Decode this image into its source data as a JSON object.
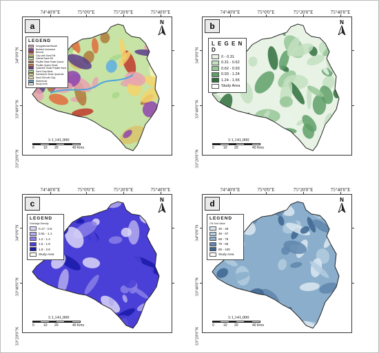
{
  "coords": {
    "top": [
      "74°40'0\"E",
      "75°0'0\"E",
      "75°20'0\"E",
      "75°40'0\"E"
    ],
    "left": [
      "34°0'0\"N",
      "33°40'0\"N",
      "33°20'0\"N"
    ]
  },
  "north_label": "N",
  "panels": [
    {
      "label": "a",
      "legend_title": "LEGEND",
      "legend_items": [
        {
          "text": "Amygdaloidal Basalt",
          "color": "#e8a3b0"
        },
        {
          "text": "Bedded Limestone",
          "color": "#8e44ad"
        },
        {
          "text": "Breccia",
          "color": "#c0392b"
        },
        {
          "text": "Clay with Sand Silt",
          "color": "#d9c36a"
        },
        {
          "text": "Glacial Sand Silt",
          "color": "#c7e3a6"
        },
        {
          "text": "Phyllite Slate Shale Quartz",
          "color": "#b07a3a"
        },
        {
          "text": "Phyllite Quartz Shale",
          "color": "#e06c3c"
        },
        {
          "text": "Quartzite Shale Phyllite Sand",
          "color": "#5a3d8a"
        },
        {
          "text": "Sand Clay Beds",
          "color": "#a9d88c"
        },
        {
          "text": "Sandstone Shale Quartzite",
          "color": "#f3d36b"
        },
        {
          "text": "Sand Silt with Clay",
          "color": "#f7f3b8"
        },
        {
          "text": "Waterbody",
          "color": "#5dade2"
        },
        {
          "text": "Study Area",
          "color": "#ffffff"
        }
      ],
      "scale_ratio": "1:1,141,000",
      "scale_nums": [
        "0",
        "10",
        "20",
        "40 Kms"
      ]
    },
    {
      "label": "b",
      "legend_title": "L E G E N D",
      "legend_items": [
        {
          "text": "0 - 0.31",
          "color": "#e8f3e6"
        },
        {
          "text": "0.31 - 0.62",
          "color": "#c3dfc0"
        },
        {
          "text": "0.62 - 0.93",
          "color": "#96c597"
        },
        {
          "text": "0.93 - 1.24",
          "color": "#5f9f68"
        },
        {
          "text": "1.24 - 1.55",
          "color": "#2f6e3c"
        },
        {
          "text": "Study Area",
          "color": "#ffffff"
        }
      ],
      "scale_ratio": "1:1,141,000",
      "scale_nums": [
        "0",
        "10",
        "20",
        "40 Kms"
      ]
    },
    {
      "label": "c",
      "legend_title": "LEGEND",
      "legend_subtitle": "Drainage Density",
      "legend_items": [
        {
          "text": "0.17 - 0.6",
          "color": "#dcd8f7"
        },
        {
          "text": "0.61 - 1.1",
          "color": "#b4abee"
        },
        {
          "text": "1.2 - 1.4",
          "color": "#8a7fe6"
        },
        {
          "text": "1.5 - 1.8",
          "color": "#4a3fd6"
        },
        {
          "text": "1.8 - 2.6",
          "color": "#1a1aa8"
        },
        {
          "text": "Study Area",
          "color": "#ffffff"
        }
      ],
      "scale_ratio": "1:1,141,000",
      "scale_nums": [
        "0",
        "10",
        "20",
        "40 Kms"
      ]
    },
    {
      "label": "d",
      "legend_title": "LEGEND",
      "legend_subtitle": "CN Grid Value",
      "legend_items": [
        {
          "text": "30 - 48",
          "color": "#dbe7f1"
        },
        {
          "text": "49 - 67",
          "color": "#b3cde0"
        },
        {
          "text": "68 - 78",
          "color": "#8aaecb"
        },
        {
          "text": "79 - 85",
          "color": "#5f87ad"
        },
        {
          "text": "86 - 100",
          "color": "#3c6590"
        },
        {
          "text": "Study Area",
          "color": "#ffffff"
        }
      ],
      "scale_ratio": "1:1,141,000",
      "scale_nums": [
        "0",
        "10",
        "20",
        "40 Kms"
      ]
    }
  ]
}
